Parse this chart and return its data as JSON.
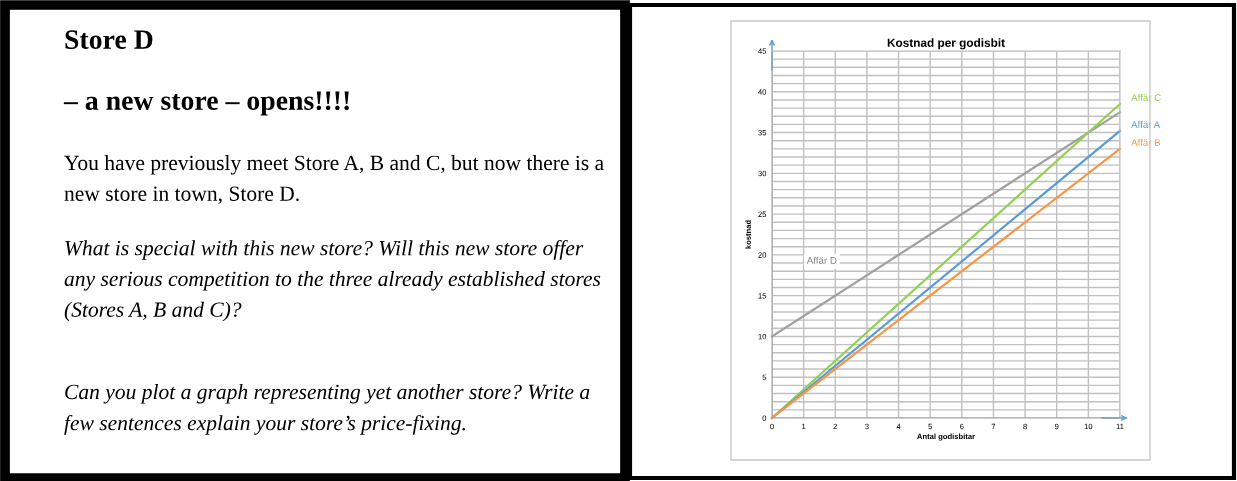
{
  "chart_data": [
    {
      "type": "other",
      "title": "Store D",
      "subtitle": "– a new store – opens!!!!",
      "annotations": [
        "You have previously meet Store A, B and C, but now there is a new store in town, Store D.",
        "What is special with this new store? Will this new store offer any serious competition to the three already established stores (Stores A, B and C)?",
        "Can you plot a graph representing yet another store? Write a few sentences explain your store’s price-fixing."
      ]
    },
    {
      "type": "line",
      "title": "Kostnad per godisbit",
      "xlabel": "Antal godisbitar",
      "ylabel": "kostnad",
      "xlim": [
        0,
        11
      ],
      "xticks": [
        0,
        1,
        2,
        3,
        4,
        5,
        6,
        7,
        8,
        9,
        10,
        11
      ],
      "ylim": [
        0,
        45
      ],
      "yticks": [
        0,
        {
          "value": 1,
          "label": null
        },
        {
          "value": 2,
          "label": null
        },
        {
          "value": 3,
          "label": null
        },
        {
          "value": 4,
          "label": null
        },
        5,
        {
          "value": 6,
          "label": null
        },
        {
          "value": 7,
          "label": null
        },
        {
          "value": 8,
          "label": null
        },
        {
          "value": 9,
          "label": null
        },
        10,
        {
          "value": 11,
          "label": null
        },
        {
          "value": 12,
          "label": null
        },
        {
          "value": 13,
          "label": null
        },
        {
          "value": 14,
          "label": null
        },
        15,
        {
          "value": 16,
          "label": null
        },
        {
          "value": 17,
          "label": null
        },
        {
          "value": 18,
          "label": null
        },
        {
          "value": 19,
          "label": null
        },
        20,
        {
          "value": 21,
          "label": null
        },
        {
          "value": 22,
          "label": null
        },
        {
          "value": 23,
          "label": null
        },
        {
          "value": 24,
          "label": null
        },
        25,
        {
          "value": 26,
          "label": null
        },
        {
          "value": 27,
          "label": null
        },
        {
          "value": 28,
          "label": null
        },
        {
          "value": 29,
          "label": null
        },
        30,
        {
          "value": 31,
          "label": null
        },
        {
          "value": 32,
          "label": null
        },
        {
          "value": 33,
          "label": null
        },
        {
          "value": 34,
          "label": null
        },
        35,
        {
          "value": 36,
          "label": null
        },
        {
          "value": 37,
          "label": null
        },
        {
          "value": 38,
          "label": null
        },
        {
          "value": 39,
          "label": null
        },
        40,
        {
          "value": 41,
          "label": null
        },
        {
          "value": 42,
          "label": null
        },
        {
          "value": 43,
          "label": null
        },
        {
          "value": 44,
          "label": null
        },
        45
      ],
      "grid": true,
      "marker": "none",
      "line_style": "solid",
      "x": [
        0,
        11
      ],
      "series": [
        {
          "color": "#a0a0a0",
          "values": [
            10,
            37.5
          ]
        },
        {
          "name": "Affär C",
          "color": "#92d050",
          "values": [
            0,
            38.5
          ]
        },
        {
          "name": "Affär A",
          "color": "#5b9bd5",
          "values": [
            0,
            35.2
          ]
        },
        {
          "name": "Affär B",
          "color": "#f79646",
          "values": [
            0,
            33
          ]
        }
      ],
      "annotations": [
        "Affär D"
      ]
    }
  ]
}
